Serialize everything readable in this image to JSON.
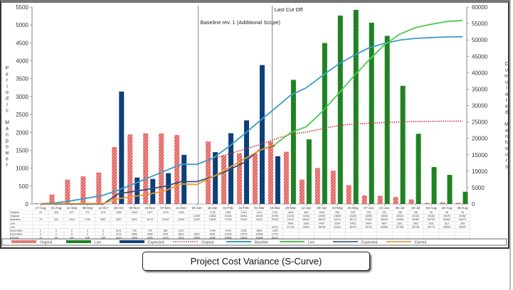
{
  "caption": "Project Cost Variance (S-Curve)",
  "chart_data": {
    "type": "bar+line",
    "ylabel_left": "Periodic Manpower",
    "ylabel_right": "Cumulated Manhours",
    "ylim_left": [
      0,
      5500
    ],
    "yticks_left": [
      0,
      500,
      1000,
      1500,
      2000,
      2500,
      3000,
      3500,
      4000,
      4500,
      5000,
      5500
    ],
    "ylim_right": [
      0,
      60000
    ],
    "yticks_right": [
      0,
      5000,
      10000,
      15000,
      20000,
      25000,
      30000,
      35000,
      40000,
      45000,
      50000,
      55000,
      60000
    ],
    "grid": false,
    "legend_position": "bottom",
    "categories": [
      "17-Aug",
      "31-Aug",
      "14-Sep",
      "28-Sep",
      "12-Oct",
      "26-Oct",
      "09-Nov",
      "23-Nov",
      "07-Dec",
      "21-Dec",
      "04-Jan",
      "18-Jan",
      "01-Feb",
      "15-Feb",
      "01-Mar",
      "15-Mar",
      "29-Mar",
      "12-Apr",
      "26-Apr",
      "10-May",
      "24-May",
      "07-Jun",
      "21-Jun",
      "05-Jul",
      "19-Jul",
      "02-Aug",
      "16-Aug",
      "30-Aug"
    ],
    "annotations": [
      {
        "text": "Baseline rev. 1 (Additional Scope)",
        "at": "04-Jan"
      },
      {
        "text": "Last Cut Off",
        "at": "15-Mar"
      }
    ],
    "bars": [
      {
        "name": "Original",
        "axis": "left",
        "color": "#d9403f",
        "hatched": true,
        "values": [
          20,
          265,
          677,
          772,
          878,
          1590,
          1943,
          1977,
          1970,
          1930,
          null,
          1745,
          1352,
          1416,
          1414,
          1744,
          1459,
          683,
          1004,
          930,
          525,
          239,
          231,
          196,
          128,
          30,
          45,
          33
        ]
      },
      {
        "name": "Live",
        "axis": "left",
        "color": "#2a9a2a",
        "hatched": true,
        "values": [
          null,
          null,
          null,
          null,
          null,
          null,
          null,
          null,
          null,
          null,
          null,
          null,
          null,
          null,
          null,
          null,
          3468,
          1805,
          4497,
          5264,
          5423,
          5064,
          4697,
          3301,
          1962,
          1031,
          813,
          343
        ]
      },
      {
        "name": "Expended",
        "axis": "left",
        "color": "#0e3f78",
        "hatched": false,
        "values": [
          0,
          0,
          0,
          0,
          0,
          3141,
          739,
          700,
          861,
          1372,
          null,
          1448,
          1978,
          2336,
          3881,
          1335,
          null,
          null,
          null,
          null,
          null,
          null,
          null,
          null,
          null,
          null,
          null,
          null
        ]
      }
    ],
    "lines": [
      {
        "name": "Original",
        "axis": "right",
        "color": "#c0393b",
        "dotted": true,
        "values": [
          null,
          null,
          null,
          null,
          null,
          null,
          null,
          null,
          null,
          null,
          12087,
          13833,
          15185,
          16601,
          18015,
          19759,
          21218,
          21901,
          22905,
          23835,
          24360,
          24599,
          24830,
          25026,
          25154,
          25184,
          25229,
          25262
        ]
      },
      {
        "name": "Baseline",
        "axis": "right",
        "color": "#3a9cc8",
        "values": [
          75,
          341,
          1018,
          1790,
          2667,
          4257,
          6201,
          8178,
          10157,
          12087,
          12087,
          13833,
          17330,
          21153,
          25211,
          29103,
          33121,
          35422,
          38976,
          42411,
          45172,
          47561,
          48940,
          49956,
          50460,
          50739,
          50902,
          50973
        ]
      },
      {
        "name": "Live",
        "axis": "right",
        "color": "#4cc94c",
        "values": [
          null,
          null,
          null,
          null,
          null,
          null,
          null,
          null,
          null,
          null,
          null,
          null,
          null,
          null,
          null,
          18121,
          21735,
          23541,
          28038,
          33301,
          38727,
          43791,
          48483,
          51786,
          53748,
          54779,
          55594,
          55937
        ]
      },
      {
        "name": "Expended",
        "axis": "right",
        "color": "#2e4f7a",
        "values": [
          0,
          0,
          0,
          0,
          0,
          3141,
          3880,
          4580,
          5441,
          6813,
          6813,
          8261,
          10239,
          12575,
          16456,
          17791,
          null,
          null,
          null,
          null,
          null,
          null,
          null,
          null,
          null,
          null,
          null,
          null
        ]
      },
      {
        "name": "Earned",
        "axis": "right",
        "color": "#f0962e",
        "values": [
          72,
          94,
          116,
          138,
          154,
          1614,
          2305,
          3032,
          4124,
          6121,
          5909,
          8184,
          10896,
          13629,
          16284,
          18121,
          null,
          null,
          null,
          null,
          null,
          null,
          null,
          null,
          null,
          null,
          null,
          null
        ]
      }
    ],
    "table": {
      "row_labels": [
        "Original",
        "Original",
        "Baseline",
        "Live",
        "Live",
        "Expended",
        "Expended",
        "Earned"
      ],
      "row_sources": [
        "bars.0",
        "lines.0",
        "lines.1",
        "bars.1",
        "lines.2",
        "bars.2",
        "lines.3",
        "lines.4"
      ]
    },
    "legend": [
      {
        "label": "Original",
        "kind": "hatch",
        "color": "#d9403f"
      },
      {
        "label": "Live",
        "kind": "hatch",
        "color": "#2a9a2a"
      },
      {
        "label": "Expended",
        "kind": "solid",
        "color": "#0e3f78"
      },
      {
        "label": "Original",
        "kind": "dotted",
        "color": "#c0393b"
      },
      {
        "label": "Baseline",
        "kind": "line",
        "color": "#3a9cc8"
      },
      {
        "label": "Live",
        "kind": "line",
        "color": "#4cc94c"
      },
      {
        "label": "Expended",
        "kind": "line",
        "color": "#5a7595"
      },
      {
        "label": "Earned",
        "kind": "line",
        "color": "#e8a860"
      }
    ]
  }
}
